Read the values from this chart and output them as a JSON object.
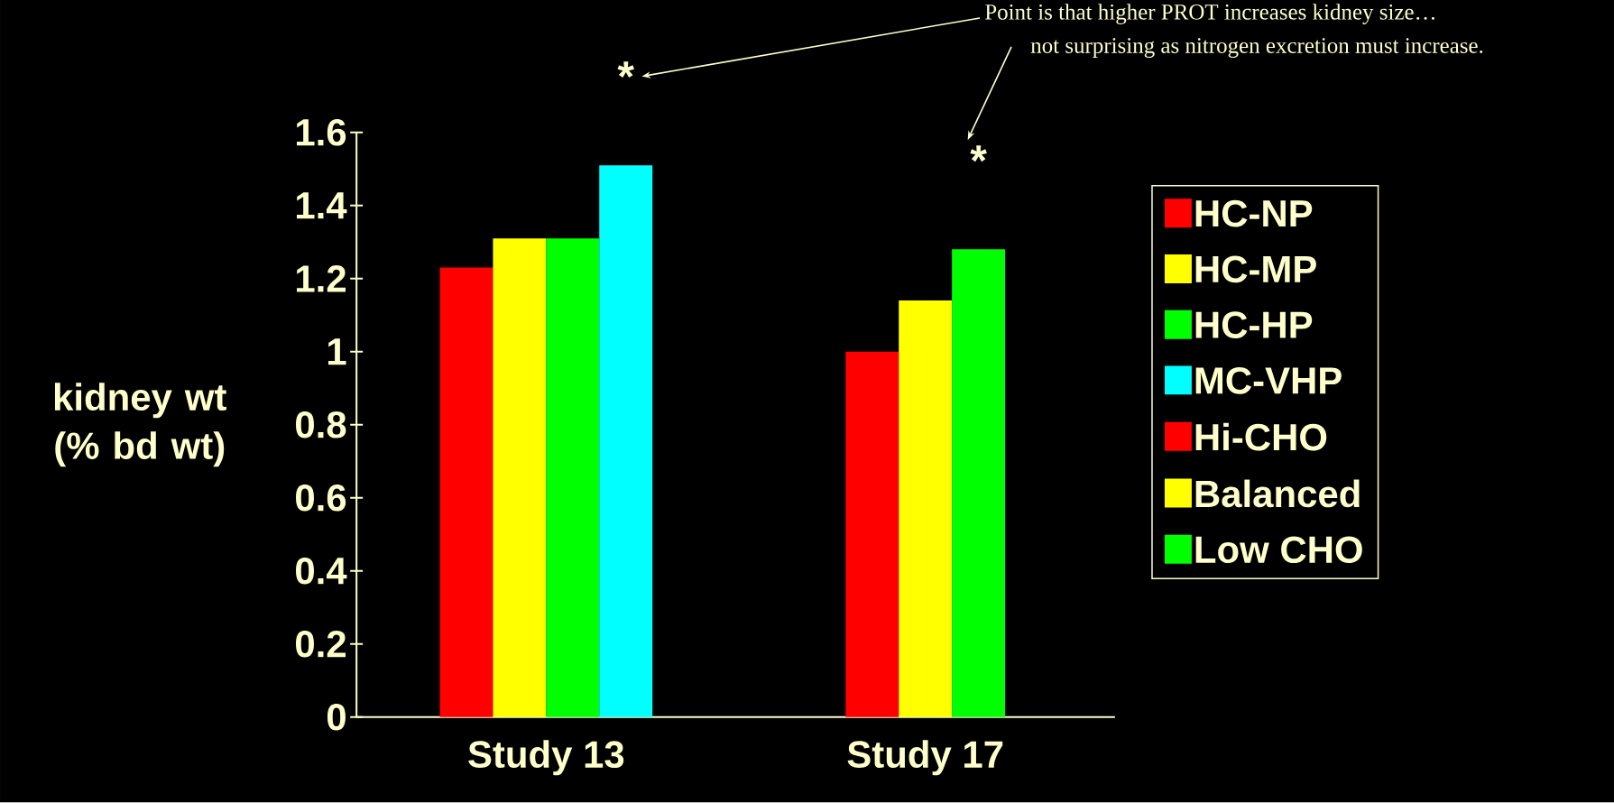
{
  "chart_data": {
    "type": "bar",
    "ylabel": "kidney wt (% bd wt)",
    "categories": [
      "Study 13",
      "Study 17"
    ],
    "series": [
      {
        "name": "HC-NP",
        "color": "#ff0000",
        "values": [
          1.23,
          null
        ]
      },
      {
        "name": "HC-MP",
        "color": "#ffff00",
        "values": [
          1.31,
          null
        ]
      },
      {
        "name": "HC-HP",
        "color": "#00ff00",
        "values": [
          1.31,
          null
        ]
      },
      {
        "name": "MC-VHP",
        "color": "#00ffff",
        "values": [
          1.51,
          null
        ]
      },
      {
        "name": "Hi-CHO",
        "color": "#ff0000",
        "values": [
          null,
          1.0
        ]
      },
      {
        "name": "Balanced",
        "color": "#ffff00",
        "values": [
          null,
          1.14
        ]
      },
      {
        "name": "Low CHO",
        "color": "#00ff00",
        "values": [
          null,
          1.28
        ]
      }
    ],
    "ylim": [
      0,
      1.6
    ],
    "yticks": [
      0,
      0.2,
      0.4,
      0.6,
      0.8,
      1,
      1.2,
      1.4,
      1.6
    ],
    "legend": "right",
    "annotations": [
      "Point is that higher PROT increases kidney size…",
      "not surprising as nitrogen excretion must increase.",
      "*",
      "*"
    ]
  }
}
